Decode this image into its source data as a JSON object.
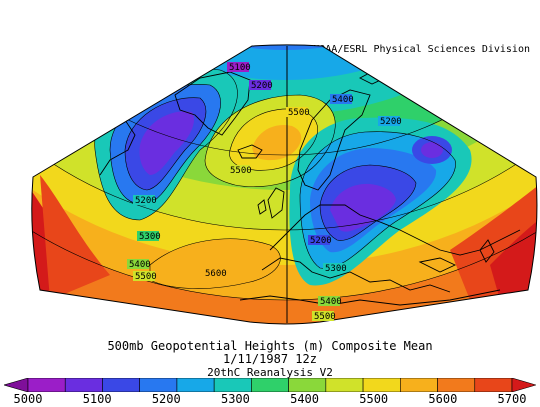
{
  "header": {
    "org_credit": "NOAA/ESRL Physical Sciences Division"
  },
  "map": {
    "projection": "conic",
    "region": "North Atlantic and Europe",
    "field": "500mb geopotential height",
    "contour_labels": [
      "5100",
      "5200",
      "5400",
      "5500",
      "5200",
      "5500",
      "5200",
      "5300",
      "5400",
      "5500",
      "5600",
      "5200",
      "5300",
      "5400",
      "5500"
    ],
    "fill_colors": [
      "#7f0f9a",
      "#9b1ec8",
      "#6a2ee0",
      "#3a48e6",
      "#2878f0",
      "#17a8e8",
      "#19c8b8",
      "#2fd06a",
      "#8ad83a",
      "#d0e22a",
      "#f2d81c",
      "#f7b01c",
      "#f27a1c",
      "#e8461a",
      "#d41a1a"
    ]
  },
  "title": {
    "line1": "500mb Geopotential Heights (m)    Composite Mean",
    "line2": "1/11/1987 12z",
    "line3": "20thC Reanalysis V2"
  },
  "colorbar": {
    "tick_labels": [
      "5000",
      "5100",
      "5200",
      "5300",
      "5400",
      "5500",
      "5600",
      "5700"
    ],
    "colors": [
      "#7f0f9a",
      "#9b1ec8",
      "#6a2ee0",
      "#3a48e6",
      "#2878f0",
      "#17a8e8",
      "#19c8b8",
      "#2fd06a",
      "#8ad83a",
      "#d0e22a",
      "#f2d81c",
      "#f7b01c",
      "#f27a1c",
      "#e8461a",
      "#d41a1a"
    ]
  }
}
